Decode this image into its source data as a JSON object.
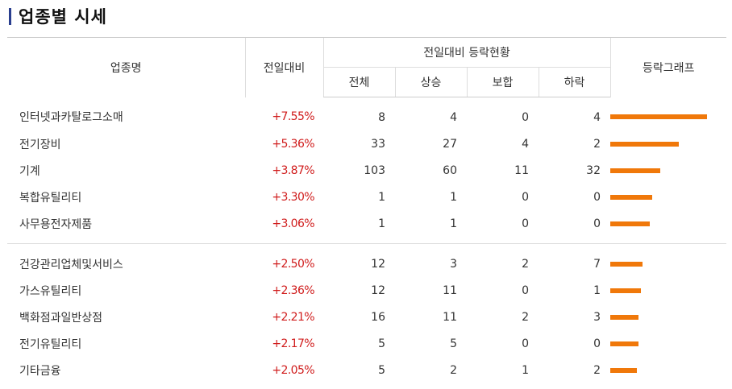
{
  "page_title": "업종별 시세",
  "headers": {
    "name": "업종명",
    "rate": "전일대비",
    "status_group": "전일대비 등락현황",
    "total": "전체",
    "up": "상승",
    "flat": "보합",
    "down": "하락",
    "graph": "등락그래프"
  },
  "colors": {
    "rate_up": "#d01c1c",
    "bar": "#f0780a",
    "title_accent": "#2a3f8f"
  },
  "groups": [
    {
      "rows": [
        {
          "name": "인터넷과카탈로그소매",
          "rate": "+7.55%",
          "rate_value": 7.55,
          "total": "8",
          "up": "4",
          "flat": "0",
          "down": "4"
        },
        {
          "name": "전기장비",
          "rate": "+5.36%",
          "rate_value": 5.36,
          "total": "33",
          "up": "27",
          "flat": "4",
          "down": "2"
        },
        {
          "name": "기계",
          "rate": "+3.87%",
          "rate_value": 3.87,
          "total": "103",
          "up": "60",
          "flat": "11",
          "down": "32"
        },
        {
          "name": "복합유틸리티",
          "rate": "+3.30%",
          "rate_value": 3.3,
          "total": "1",
          "up": "1",
          "flat": "0",
          "down": "0"
        },
        {
          "name": "사무용전자제품",
          "rate": "+3.06%",
          "rate_value": 3.06,
          "total": "1",
          "up": "1",
          "flat": "0",
          "down": "0"
        }
      ]
    },
    {
      "rows": [
        {
          "name": "건강관리업체및서비스",
          "rate": "+2.50%",
          "rate_value": 2.5,
          "total": "12",
          "up": "3",
          "flat": "2",
          "down": "7"
        },
        {
          "name": "가스유틸리티",
          "rate": "+2.36%",
          "rate_value": 2.36,
          "total": "12",
          "up": "11",
          "flat": "0",
          "down": "1"
        },
        {
          "name": "백화점과일반상점",
          "rate": "+2.21%",
          "rate_value": 2.21,
          "total": "16",
          "up": "11",
          "flat": "2",
          "down": "3"
        },
        {
          "name": "전기유틸리티",
          "rate": "+2.17%",
          "rate_value": 2.17,
          "total": "5",
          "up": "5",
          "flat": "0",
          "down": "0"
        },
        {
          "name": "기타금융",
          "rate": "+2.05%",
          "rate_value": 2.05,
          "total": "5",
          "up": "2",
          "flat": "1",
          "down": "2"
        }
      ]
    }
  ]
}
